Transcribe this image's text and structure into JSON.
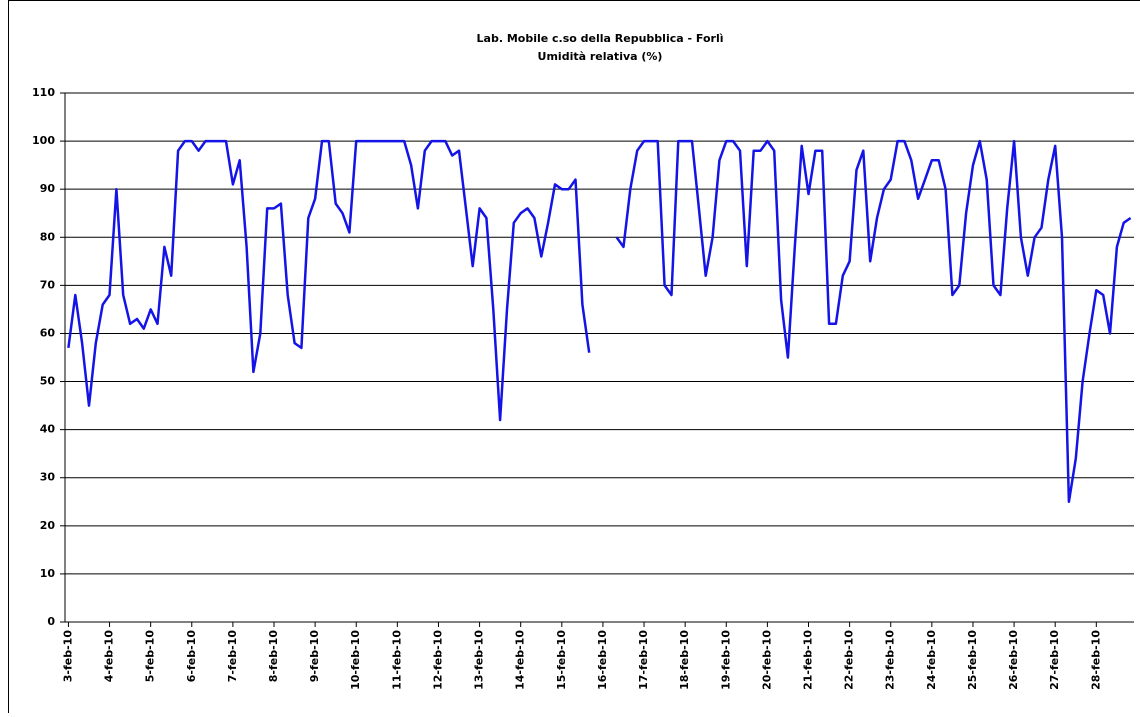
{
  "chart_data": {
    "type": "line",
    "title": "Lab. Mobile c.so della Repubblica - Forlì",
    "subtitle": "Umidità relativa (%)",
    "categories": [
      "3-feb-10",
      null,
      null,
      null,
      null,
      null,
      "4-feb-10",
      null,
      null,
      null,
      null,
      null,
      "5-feb-10",
      null,
      null,
      null,
      null,
      null,
      "6-feb-10",
      null,
      null,
      null,
      null,
      null,
      "7-feb-10",
      null,
      null,
      null,
      null,
      null,
      "8-feb-10",
      null,
      null,
      null,
      null,
      null,
      "9-feb-10",
      null,
      null,
      null,
      null,
      null,
      "10-feb-10",
      null,
      null,
      null,
      null,
      null,
      "11-feb-10",
      null,
      null,
      null,
      null,
      null,
      "12-feb-10",
      null,
      null,
      null,
      null,
      null,
      "13-feb-10",
      null,
      null,
      null,
      null,
      null,
      "14-feb-10",
      null,
      null,
      null,
      null,
      null,
      "15-feb-10",
      null,
      null,
      null,
      null,
      null,
      "16-feb-10",
      null,
      null,
      null,
      null,
      null,
      "17-feb-10",
      null,
      null,
      null,
      null,
      null,
      "18-feb-10",
      null,
      null,
      null,
      null,
      null,
      "19-feb-10",
      null,
      null,
      null,
      null,
      null,
      "20-feb-10",
      null,
      null,
      null,
      null,
      null,
      "21-feb-10",
      null,
      null,
      null,
      null,
      null,
      "22-feb-10",
      null,
      null,
      null,
      null,
      null,
      "23-feb-10",
      null,
      null,
      null,
      null,
      null,
      "24-feb-10",
      null,
      null,
      null,
      null,
      null,
      "25-feb-10",
      null,
      null,
      null,
      null,
      null,
      "26-feb-10",
      null,
      null,
      null,
      null,
      null,
      "27-feb-10",
      null,
      null,
      null,
      null,
      null,
      "28-feb-10",
      null,
      null,
      null,
      null,
      null
    ],
    "series": [
      {
        "color": "#1414e6",
        "values": [
          57,
          68,
          58,
          45,
          58,
          66,
          68,
          90,
          68,
          62,
          63,
          61,
          65,
          62,
          78,
          72,
          98,
          100,
          100,
          98,
          100,
          100,
          100,
          100,
          91,
          96,
          78,
          52,
          60,
          86,
          86,
          87,
          68,
          58,
          57,
          84,
          88,
          100,
          100,
          87,
          85,
          81,
          100,
          100,
          100,
          100,
          100,
          100,
          100,
          100,
          95,
          86,
          98,
          100,
          100,
          100,
          97,
          98,
          86,
          74,
          86,
          84,
          65,
          42,
          65,
          83,
          85,
          86,
          84,
          76,
          83,
          91,
          90,
          90,
          92,
          66,
          56,
          null,
          null,
          null,
          80,
          78,
          90,
          98,
          100,
          100,
          100,
          70,
          68,
          100,
          100,
          100,
          86,
          72,
          80,
          96,
          100,
          100,
          98,
          74,
          98,
          98,
          100,
          98,
          67,
          55,
          78,
          99,
          89,
          98,
          98,
          62,
          62,
          72,
          75,
          94,
          98,
          75,
          84,
          90,
          92,
          100,
          100,
          96,
          88,
          92,
          96,
          96,
          90,
          68,
          70,
          85,
          95,
          100,
          92,
          70,
          68,
          86,
          100,
          80,
          72,
          80,
          82,
          92,
          99,
          80,
          25,
          34,
          50,
          60,
          69,
          68,
          60,
          78,
          83,
          84
        ]
      }
    ],
    "ylim": [
      0,
      110
    ],
    "yticks": [
      0,
      10,
      20,
      30,
      40,
      50,
      60,
      70,
      80,
      90,
      100,
      110
    ],
    "grid": true
  }
}
